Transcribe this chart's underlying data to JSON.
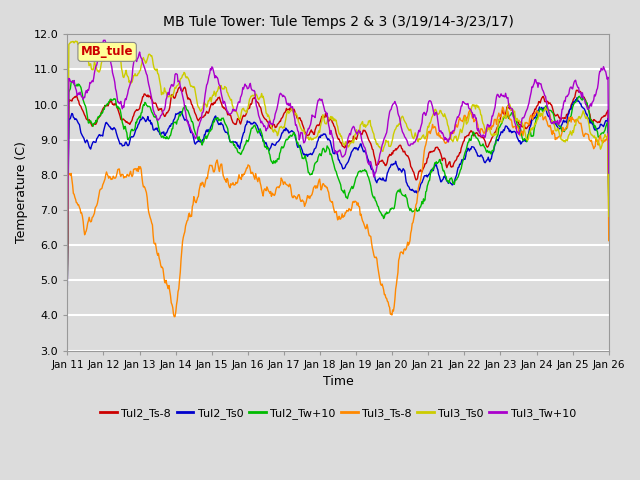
{
  "title": "MB Tule Tower: Tule Temps 2 & 3 (3/19/14-3/23/17)",
  "xlabel": "Time",
  "ylabel": "Temperature (C)",
  "ylim": [
    3.0,
    12.0
  ],
  "yticks": [
    3.0,
    4.0,
    5.0,
    6.0,
    7.0,
    8.0,
    9.0,
    10.0,
    11.0,
    12.0
  ],
  "x_labels": [
    "Jan 11",
    "Jan 12",
    "Jan 13",
    "Jan 14",
    "Jan 15",
    "Jan 16",
    "Jan 17",
    "Jan 18",
    "Jan 19",
    "Jan 20",
    "Jan 21",
    "Jan 22",
    "Jan 23",
    "Jan 24",
    "Jan 25",
    "Jan 26"
  ],
  "legend_entries": [
    {
      "label": "Tul2_Ts-8",
      "color": "#cc0000"
    },
    {
      "label": "Tul2_Ts0",
      "color": "#0000cc"
    },
    {
      "label": "Tul2_Tw+10",
      "color": "#00bb00"
    },
    {
      "label": "Tul3_Ts-8",
      "color": "#ff8800"
    },
    {
      "label": "Tul3_Ts0",
      "color": "#cccc00"
    },
    {
      "label": "Tul3_Tw+10",
      "color": "#aa00cc"
    }
  ],
  "inset_label": "MB_tule",
  "bg_color": "#dcdcdc",
  "grid_color": "#ffffff",
  "line_width": 1.0
}
